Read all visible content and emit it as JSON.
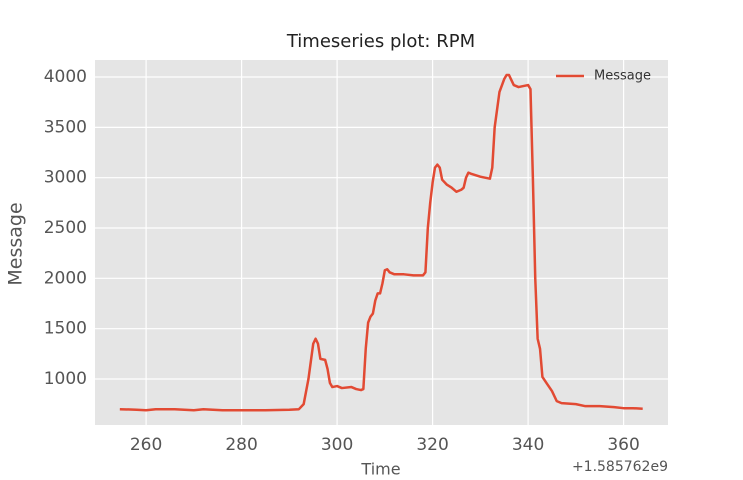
{
  "chart_data": {
    "type": "line",
    "title": "Timeseries plot: RPM",
    "x_label": "Time",
    "y_label": "Message",
    "x_offset_label": "+1.585762e9",
    "x": [
      254.5,
      258,
      260,
      262,
      266,
      270,
      272,
      276,
      280,
      285,
      290,
      292,
      293,
      294,
      295,
      295.5,
      296,
      296.5,
      297.5,
      298,
      298.5,
      299,
      300,
      301,
      303,
      304,
      305,
      305.5,
      306,
      306.5,
      307,
      307.5,
      308,
      308.5,
      309,
      309.5,
      310,
      310.5,
      311,
      312,
      314,
      316,
      318,
      318.5,
      319,
      319.5,
      320,
      320.5,
      321,
      321.5,
      322,
      323,
      324,
      325,
      326,
      326.5,
      327,
      327.5,
      328,
      330,
      331,
      332,
      332.5,
      333,
      334,
      335,
      335.5,
      336,
      336.5,
      337,
      338,
      339,
      340,
      340.5,
      341,
      341.5,
      342,
      342.5,
      343,
      344,
      345,
      346,
      347,
      350,
      352,
      355,
      358,
      360,
      362,
      364
    ],
    "series": [
      {
        "name": "Message",
        "color": "#e24a33",
        "values": [
          700,
          695,
          690,
          700,
          700,
          690,
          700,
          690,
          690,
          690,
          695,
          700,
          750,
          1000,
          1350,
          1400,
          1350,
          1200,
          1190,
          1100,
          960,
          920,
          930,
          910,
          920,
          900,
          890,
          900,
          1300,
          1560,
          1620,
          1650,
          1780,
          1850,
          1850,
          1950,
          2080,
          2090,
          2060,
          2040,
          2040,
          2030,
          2030,
          2060,
          2500,
          2750,
          2950,
          3100,
          3130,
          3100,
          2980,
          2930,
          2900,
          2860,
          2880,
          2900,
          3000,
          3050,
          3040,
          3010,
          3000,
          2990,
          3100,
          3500,
          3850,
          3980,
          4020,
          4020,
          3970,
          3920,
          3900,
          3910,
          3920,
          3880,
          3000,
          2000,
          1400,
          1300,
          1020,
          950,
          880,
          780,
          760,
          750,
          730,
          730,
          720,
          710,
          710,
          705
        ]
      }
    ],
    "xlim": [
      249.3,
      369.3
    ],
    "ylim": [
      543,
      4169
    ],
    "xticks": [
      260,
      280,
      300,
      320,
      340,
      360
    ],
    "yticks": [
      1000,
      1500,
      2000,
      2500,
      3000,
      3500,
      4000
    ],
    "grid": true,
    "legend": "upper right"
  }
}
